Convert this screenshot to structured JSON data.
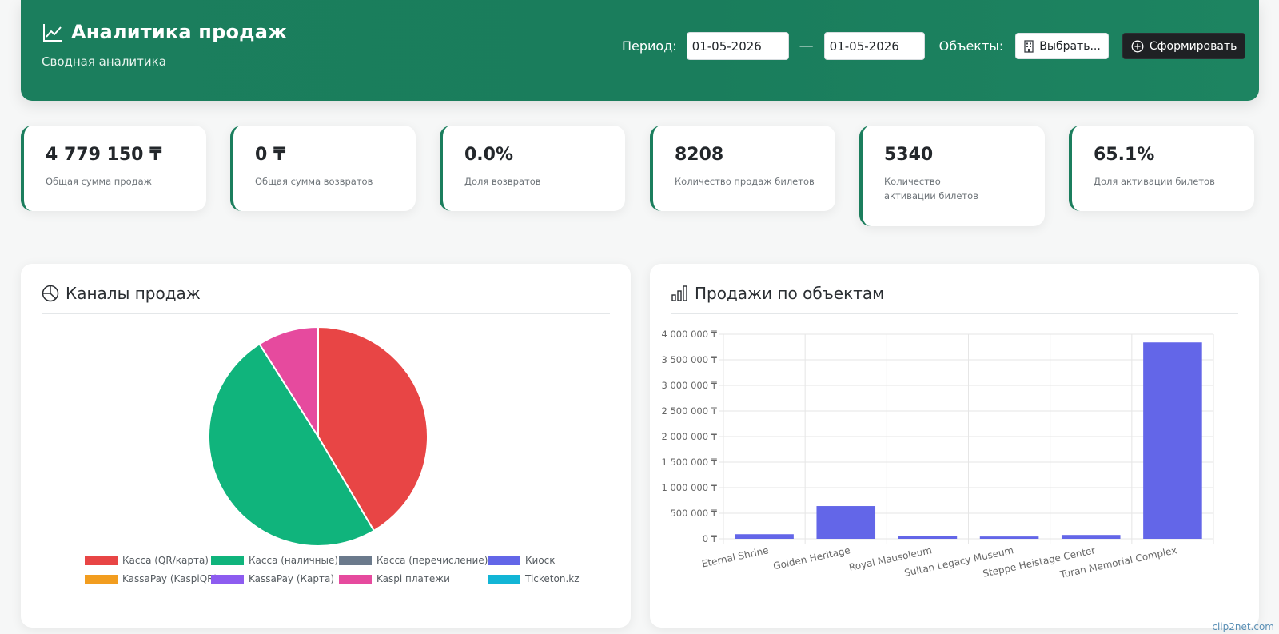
{
  "header": {
    "title": "Аналитика продаж",
    "subtitle": "Сводная аналитика",
    "period_label": "Период:",
    "date_from": "01-05-2026",
    "date_separator": "—",
    "date_to": "01-05-2026",
    "objects_label": "Объекты:",
    "select_button": "Выбрать...",
    "generate_button": "Сформировать",
    "brand_color": "#1b7e5d"
  },
  "kpis": [
    {
      "value": "4 779 150 ₸",
      "label": "Общая сумма продаж"
    },
    {
      "value": "0 ₸",
      "label": "Общая сумма возвратов"
    },
    {
      "value": "0.0%",
      "label": "Доля возвратов"
    },
    {
      "value": "8208",
      "label": "Количество продаж  билетов"
    },
    {
      "value": "5340",
      "label": "Количество активации билетов"
    },
    {
      "value": "65.1%",
      "label": "Доля активации билетов"
    }
  ],
  "channels_panel": {
    "title": "Каналы продаж",
    "icon": "pie-chart-icon"
  },
  "objects_panel": {
    "title": "Продажи по объектам",
    "icon": "bar-chart-icon"
  },
  "chart_data": [
    {
      "type": "pie",
      "title": "Каналы продаж",
      "categories": [
        "Касса (QR/карта)",
        "Касса (наличные)",
        "Касса (перечисление)",
        "Киоск",
        "KassaPay (KaspiQR)",
        "KassaPay (Карта)",
        "Kaspi платежи",
        "Ticketon.kz"
      ],
      "values": [
        41.5,
        49.5,
        0,
        0,
        0,
        0,
        9.0,
        0
      ],
      "colors": [
        "#e84545",
        "#10b47c",
        "#6b7a8c",
        "#6366e8",
        "#f29d1f",
        "#8d5cf0",
        "#e64a9e",
        "#12b5d6"
      ],
      "legend": "bottom"
    },
    {
      "type": "bar",
      "title": "Продажи по объектам",
      "categories": [
        "Eternal Shrine",
        "Golden Heritage",
        "Royal Mausoleum",
        "Sultan Legacy Museum",
        "Steppe Heistage Center",
        "Turan Memorial Complex"
      ],
      "values": [
        90000,
        640000,
        55000,
        45000,
        75000,
        3840000
      ],
      "ylim": [
        0,
        4000000
      ],
      "yticks": [
        "0 ₸",
        "500 000 ₸",
        "1 000 000 ₸",
        "1 500 000 ₸",
        "2 000 000 ₸",
        "2 500 000 ₸",
        "3 000 000 ₸",
        "3 500 000 ₸",
        "4 000 000 ₸"
      ],
      "bar_color": "#6366e8",
      "grid": true
    }
  ],
  "watermark": "clip2net.com"
}
